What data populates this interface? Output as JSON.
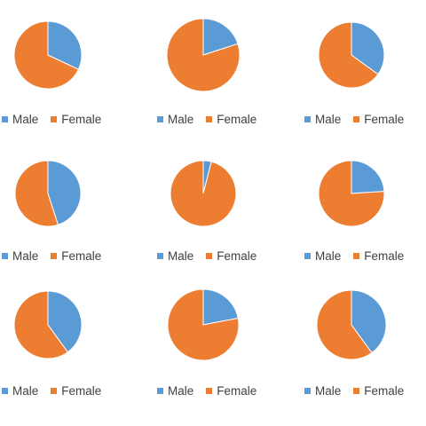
{
  "colors": {
    "male": "#5b9bd5",
    "female": "#ed7d31"
  },
  "chart_data": [
    {
      "type": "pie",
      "legend_position": "bottom",
      "categories": [
        "Male",
        "Female"
      ],
      "values": [
        32,
        68
      ]
    },
    {
      "type": "pie",
      "legend_position": "bottom",
      "categories": [
        "Male",
        "Female"
      ],
      "values": [
        20,
        80
      ]
    },
    {
      "type": "pie",
      "legend_position": "bottom",
      "categories": [
        "Male",
        "Female"
      ],
      "values": [
        35,
        65
      ]
    },
    {
      "type": "pie",
      "legend_position": "bottom",
      "categories": [
        "Male",
        "Female"
      ],
      "values": [
        45,
        55
      ]
    },
    {
      "type": "pie",
      "legend_position": "bottom",
      "categories": [
        "Male",
        "Female"
      ],
      "values": [
        4,
        96
      ]
    },
    {
      "type": "pie",
      "legend_position": "bottom",
      "categories": [
        "Male",
        "Female"
      ],
      "values": [
        24,
        76
      ]
    },
    {
      "type": "pie",
      "legend_position": "bottom",
      "categories": [
        "Male",
        "Female"
      ],
      "values": [
        40,
        60
      ]
    },
    {
      "type": "pie",
      "legend_position": "bottom",
      "categories": [
        "Male",
        "Female"
      ],
      "values": [
        22,
        78
      ]
    },
    {
      "type": "pie",
      "legend_position": "bottom",
      "categories": [
        "Male",
        "Female"
      ],
      "values": [
        40,
        60
      ]
    }
  ]
}
